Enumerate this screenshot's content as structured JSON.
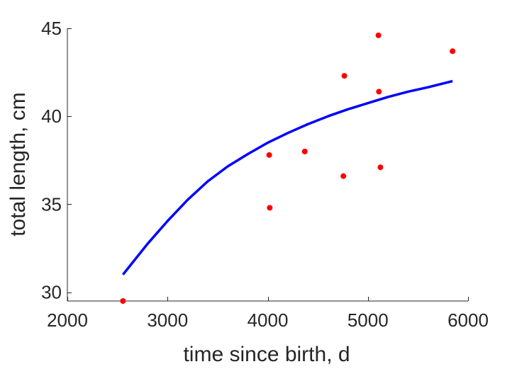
{
  "chart_data": {
    "type": "scatter",
    "title": "",
    "xlabel": "time since birth, d",
    "ylabel": "total length, cm",
    "xlim": [
      2000,
      6000
    ],
    "ylim": [
      29.5,
      45
    ],
    "xticks": [
      2000,
      3000,
      4000,
      5000,
      6000
    ],
    "yticks": [
      30,
      35,
      40,
      45
    ],
    "xtick_labels": [
      "2000",
      "3000",
      "4000",
      "5000",
      "6000"
    ],
    "ytick_labels": [
      "30",
      "35",
      "40",
      "45"
    ],
    "grid": false,
    "legend": "none",
    "series": [
      {
        "type": "scatter",
        "color": "#ff0000",
        "x": [
          2555,
          4015,
          4020,
          4370,
          4755,
          4765,
          5105,
          5110,
          5125,
          5845
        ],
        "y": [
          29.5,
          37.8,
          34.8,
          38.0,
          36.6,
          42.3,
          44.6,
          41.4,
          37.1,
          43.7
        ]
      },
      {
        "type": "line",
        "color": "#0000ff",
        "x": [
          2555,
          2800,
          3000,
          3200,
          3400,
          3600,
          3800,
          4000,
          4200,
          4400,
          4600,
          4800,
          5000,
          5200,
          5400,
          5600,
          5845
        ],
        "y": [
          31.0,
          32.75,
          34.05,
          35.25,
          36.3,
          37.15,
          37.85,
          38.5,
          39.05,
          39.55,
          40.0,
          40.4,
          40.75,
          41.1,
          41.4,
          41.65,
          42.0
        ]
      }
    ]
  }
}
